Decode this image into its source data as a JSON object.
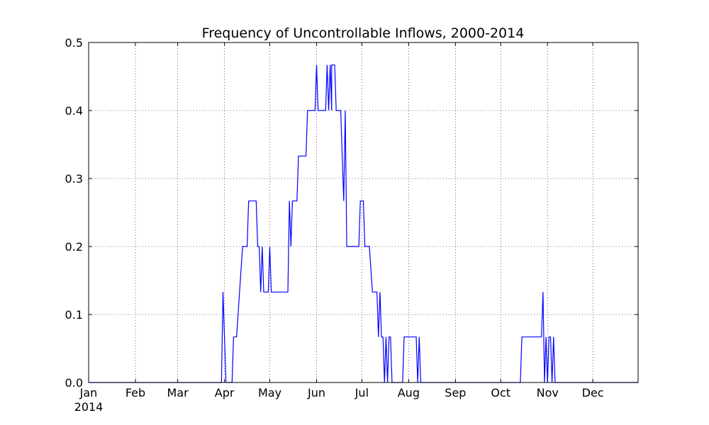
{
  "chart_data": {
    "type": "line",
    "title": "Frequency of Uncontrollable Inflows, 2000-2014",
    "xlabel": "",
    "ylabel": "",
    "x_range": [
      "2014-01-01",
      "2014-12-31"
    ],
    "ylim": [
      0,
      0.5
    ],
    "grid": true,
    "line_color": "#0000ff",
    "y_ticks": [
      {
        "value": 0.0,
        "label": "0.0"
      },
      {
        "value": 0.1,
        "label": "0.1"
      },
      {
        "value": 0.2,
        "label": "0.2"
      },
      {
        "value": 0.3,
        "label": "0.3"
      },
      {
        "value": 0.4,
        "label": "0.4"
      },
      {
        "value": 0.5,
        "label": "0.5"
      }
    ],
    "x_ticks": [
      {
        "date": "2014-01-01",
        "label": "Jan"
      },
      {
        "date": "2014-02-01",
        "label": "Feb"
      },
      {
        "date": "2014-03-01",
        "label": "Mar"
      },
      {
        "date": "2014-04-01",
        "label": "Apr"
      },
      {
        "date": "2014-05-01",
        "label": "May"
      },
      {
        "date": "2014-06-01",
        "label": "Jun"
      },
      {
        "date": "2014-07-01",
        "label": "Jul"
      },
      {
        "date": "2014-08-01",
        "label": "Aug"
      },
      {
        "date": "2014-09-01",
        "label": "Sep"
      },
      {
        "date": "2014-10-01",
        "label": "Oct"
      },
      {
        "date": "2014-11-01",
        "label": "Nov"
      },
      {
        "date": "2014-12-01",
        "label": "Dec"
      }
    ],
    "x_year_label": "2014",
    "series": [
      {
        "points": [
          [
            "2014-01-01",
            0.0
          ],
          [
            "2014-03-30",
            0.0
          ],
          [
            "2014-03-31",
            0.133
          ],
          [
            "2014-04-02",
            0.0
          ],
          [
            "2014-04-06",
            0.0
          ],
          [
            "2014-04-07",
            0.067
          ],
          [
            "2014-04-09",
            0.067
          ],
          [
            "2014-04-13",
            0.2
          ],
          [
            "2014-04-16",
            0.2
          ],
          [
            "2014-04-17",
            0.267
          ],
          [
            "2014-04-22",
            0.267
          ],
          [
            "2014-04-23",
            0.2
          ],
          [
            "2014-04-24",
            0.2
          ],
          [
            "2014-04-25",
            0.133
          ],
          [
            "2014-04-26",
            0.2
          ],
          [
            "2014-04-27",
            0.133
          ],
          [
            "2014-04-30",
            0.133
          ],
          [
            "2014-05-01",
            0.2
          ],
          [
            "2014-05-02",
            0.133
          ],
          [
            "2014-05-13",
            0.133
          ],
          [
            "2014-05-14",
            0.267
          ],
          [
            "2014-05-15",
            0.2
          ],
          [
            "2014-05-16",
            0.267
          ],
          [
            "2014-05-19",
            0.267
          ],
          [
            "2014-05-20",
            0.333
          ],
          [
            "2014-05-25",
            0.333
          ],
          [
            "2014-05-26",
            0.4
          ],
          [
            "2014-05-31",
            0.4
          ],
          [
            "2014-06-01",
            0.467
          ],
          [
            "2014-06-02",
            0.4
          ],
          [
            "2014-06-07",
            0.4
          ],
          [
            "2014-06-08",
            0.467
          ],
          [
            "2014-06-09",
            0.4
          ],
          [
            "2014-06-10",
            0.467
          ],
          [
            "2014-06-11",
            0.4
          ],
          [
            "2014-06-11",
            0.467
          ],
          [
            "2014-06-13",
            0.467
          ],
          [
            "2014-06-14",
            0.4
          ],
          [
            "2014-06-17",
            0.4
          ],
          [
            "2014-06-19",
            0.267
          ],
          [
            "2014-06-20",
            0.4
          ],
          [
            "2014-06-21",
            0.2
          ],
          [
            "2014-06-29",
            0.2
          ],
          [
            "2014-06-30",
            0.267
          ],
          [
            "2014-07-02",
            0.267
          ],
          [
            "2014-07-03",
            0.2
          ],
          [
            "2014-07-06",
            0.2
          ],
          [
            "2014-07-08",
            0.133
          ],
          [
            "2014-07-11",
            0.133
          ],
          [
            "2014-07-12",
            0.067
          ],
          [
            "2014-07-13",
            0.133
          ],
          [
            "2014-07-14",
            0.067
          ],
          [
            "2014-07-15",
            0.067
          ],
          [
            "2014-07-16",
            0.0
          ],
          [
            "2014-07-17",
            0.067
          ],
          [
            "2014-07-18",
            0.0
          ],
          [
            "2014-07-19",
            0.067
          ],
          [
            "2014-07-20",
            0.067
          ],
          [
            "2014-07-21",
            0.0
          ],
          [
            "2014-07-28",
            0.0
          ],
          [
            "2014-07-29",
            0.067
          ],
          [
            "2014-08-06",
            0.067
          ],
          [
            "2014-08-07",
            0.0
          ],
          [
            "2014-08-08",
            0.067
          ],
          [
            "2014-08-09",
            0.0
          ],
          [
            "2014-10-14",
            0.0
          ],
          [
            "2014-10-15",
            0.067
          ],
          [
            "2014-10-28",
            0.067
          ],
          [
            "2014-10-29",
            0.133
          ],
          [
            "2014-10-30",
            0.0
          ],
          [
            "2014-10-31",
            0.067
          ],
          [
            "2014-11-01",
            0.0
          ],
          [
            "2014-11-02",
            0.067
          ],
          [
            "2014-11-03",
            0.067
          ],
          [
            "2014-11-04",
            0.0
          ],
          [
            "2014-11-05",
            0.067
          ],
          [
            "2014-11-06",
            0.0
          ],
          [
            "2014-12-31",
            0.0
          ]
        ]
      }
    ]
  }
}
